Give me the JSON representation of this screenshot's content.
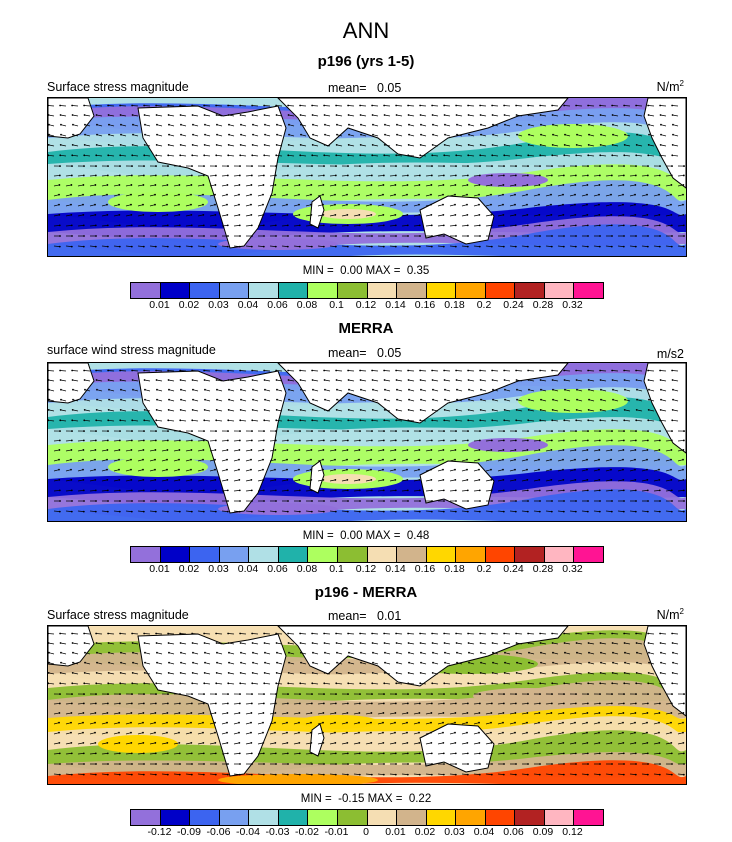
{
  "figure": {
    "title": "ANN"
  },
  "panels": [
    {
      "title": "p196 (yrs 1-5)",
      "left_label": "Surface stress magnitude",
      "mean_label": "mean=",
      "mean_value": "0.05",
      "units": "N/m",
      "units_sup": "2",
      "min_label": "MIN =",
      "min_value": "0.00",
      "max_label": "MAX =",
      "max_value": "0.35",
      "palette": "abs",
      "colorbar_labels": [
        "0.01",
        "0.02",
        "0.03",
        "0.04",
        "0.06",
        "0.08",
        "0.1",
        "0.12",
        "0.14",
        "0.16",
        "0.18",
        "0.2",
        "0.24",
        "0.28",
        "0.32"
      ],
      "colorbar_colors": [
        "#9370db",
        "#0000c8",
        "#3c64f0",
        "#78a0f0",
        "#b0e0e6",
        "#20b2aa",
        "#adff5f",
        "#8cbe32",
        "#f5deb3",
        "#d2b48c",
        "#ffd700",
        "#ffa500",
        "#ff4500",
        "#b22222",
        "#ffb6c1",
        "#ff1493"
      ]
    },
    {
      "title": "MERRA",
      "left_label": "surface wind stress magnitude",
      "mean_label": "mean=",
      "mean_value": "0.05",
      "units": "m/s2",
      "units_sup": "",
      "min_label": "MIN =",
      "min_value": "0.00",
      "max_label": "MAX =",
      "max_value": "0.48",
      "palette": "abs",
      "colorbar_labels": [
        "0.01",
        "0.02",
        "0.03",
        "0.04",
        "0.06",
        "0.08",
        "0.1",
        "0.12",
        "0.14",
        "0.16",
        "0.18",
        "0.2",
        "0.24",
        "0.28",
        "0.32"
      ],
      "colorbar_colors": [
        "#9370db",
        "#0000c8",
        "#3c64f0",
        "#78a0f0",
        "#b0e0e6",
        "#20b2aa",
        "#adff5f",
        "#8cbe32",
        "#f5deb3",
        "#d2b48c",
        "#ffd700",
        "#ffa500",
        "#ff4500",
        "#b22222",
        "#ffb6c1",
        "#ff1493"
      ]
    },
    {
      "title": "p196 - MERRA",
      "left_label": "Surface stress magnitude",
      "mean_label": "mean=",
      "mean_value": "0.01",
      "units": "N/m",
      "units_sup": "2",
      "min_label": "MIN =",
      "min_value": "-0.15",
      "max_label": "MAX =",
      "max_value": "0.22",
      "palette": "diff",
      "colorbar_labels": [
        "-0.12",
        "-0.09",
        "-0.06",
        "-0.04",
        "-0.03",
        "-0.02",
        "-0.01",
        "0",
        "0.01",
        "0.02",
        "0.03",
        "0.04",
        "0.06",
        "0.09",
        "0.12"
      ],
      "colorbar_colors": [
        "#9370db",
        "#0000c8",
        "#3c64f0",
        "#78a0f0",
        "#b0e0e6",
        "#20b2aa",
        "#adff5f",
        "#8cbe32",
        "#f5deb3",
        "#d2b48c",
        "#ffd700",
        "#ffa500",
        "#ff4500",
        "#b22222",
        "#ffb6c1",
        "#ff1493"
      ]
    }
  ]
}
